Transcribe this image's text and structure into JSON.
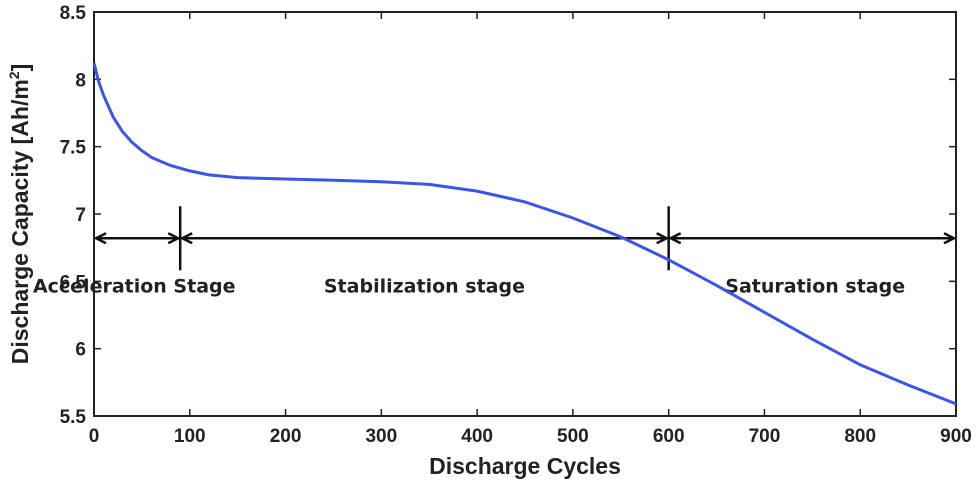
{
  "chart_data": {
    "type": "line",
    "title": "",
    "xlabel": "Discharge Cycles",
    "ylabel": "Discharge Capacity [Ah/m",
    "ylabel_superscript": "2",
    "ylabel_suffix": "]",
    "xlim": [
      0,
      900
    ],
    "ylim": [
      5.5,
      8.5
    ],
    "xticks": [
      0,
      100,
      200,
      300,
      400,
      500,
      600,
      700,
      800,
      900
    ],
    "xtick_labels": [
      "0",
      "100",
      "200",
      "300",
      "400",
      "500",
      "600",
      "700",
      "800",
      "900"
    ],
    "yticks": [
      5.5,
      6,
      6.5,
      7,
      7.5,
      8,
      8.5
    ],
    "ytick_labels": [
      "5.5",
      "6",
      "6.5",
      "7",
      "7.5",
      "8",
      "8.5"
    ],
    "grid": false,
    "series": [
      {
        "name": "Discharge Capacity",
        "color": "#3b55e6",
        "x": [
          0,
          5,
          10,
          20,
          30,
          40,
          50,
          60,
          70,
          80,
          90,
          100,
          120,
          150,
          200,
          250,
          300,
          350,
          400,
          450,
          500,
          550,
          600,
          650,
          700,
          750,
          800,
          850,
          900
        ],
        "y": [
          8.12,
          7.98,
          7.88,
          7.72,
          7.61,
          7.53,
          7.47,
          7.42,
          7.39,
          7.36,
          7.34,
          7.32,
          7.29,
          7.27,
          7.26,
          7.25,
          7.24,
          7.22,
          7.17,
          7.09,
          6.97,
          6.83,
          6.66,
          6.47,
          6.27,
          6.07,
          5.88,
          5.73,
          5.59
        ]
      }
    ],
    "stages": [
      {
        "label": "Acceleration Stage",
        "x_start": 0,
        "x_end": 90,
        "label_x": 42
      },
      {
        "label": "Stabilization stage",
        "x_start": 90,
        "x_end": 600,
        "label_x": 345
      },
      {
        "label": "Saturation stage",
        "x_start": 600,
        "x_end": 900,
        "label_x": 753
      }
    ],
    "stage_arrow_y": 6.82,
    "stage_label_y": 6.47,
    "stage_dividers": [
      90,
      600
    ]
  }
}
